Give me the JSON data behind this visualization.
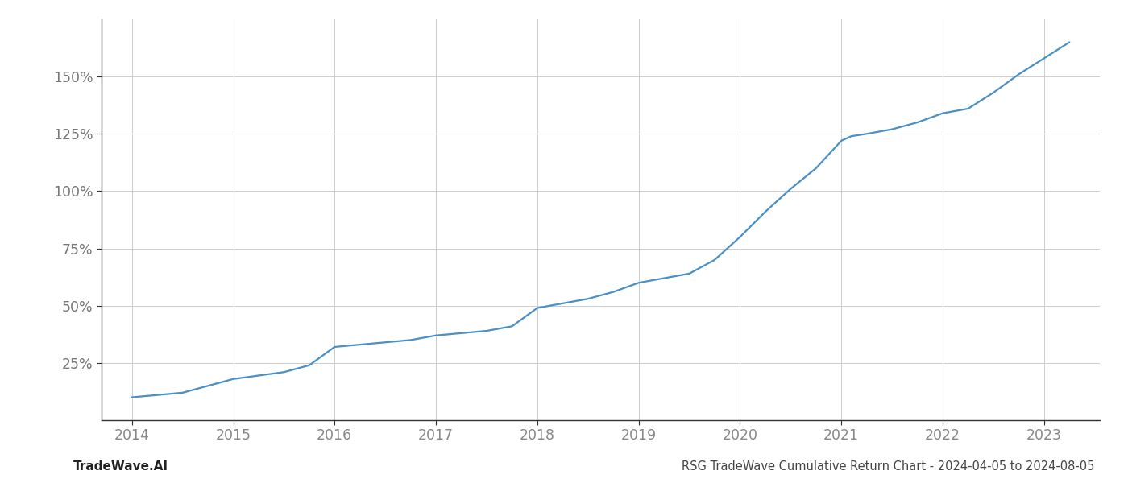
{
  "title": "RSG TradeWave Cumulative Return Chart - 2024-04-05 to 2024-08-05",
  "footer_left": "TradeWave.AI",
  "line_color": "#4a90c4",
  "line_width": 1.6,
  "background_color": "#ffffff",
  "grid_color": "#cccccc",
  "ylabel_color": "#777777",
  "xlabel_color": "#888888",
  "years": [
    2014.0,
    2014.25,
    2014.5,
    2014.75,
    2015.0,
    2015.25,
    2015.5,
    2015.75,
    2016.0,
    2016.25,
    2016.5,
    2016.75,
    2017.0,
    2017.25,
    2017.5,
    2017.75,
    2018.0,
    2018.25,
    2018.5,
    2018.75,
    2019.0,
    2019.25,
    2019.5,
    2019.75,
    2020.0,
    2020.25,
    2020.5,
    2020.75,
    2021.0,
    2021.1,
    2021.25,
    2021.5,
    2021.75,
    2022.0,
    2022.25,
    2022.5,
    2022.75,
    2023.0,
    2023.25
  ],
  "values": [
    10,
    11,
    12,
    15,
    18,
    19.5,
    21,
    24,
    32,
    33,
    34,
    35,
    37,
    38,
    39,
    41,
    49,
    51,
    53,
    56,
    60,
    62,
    64,
    70,
    80,
    91,
    101,
    110,
    122,
    124,
    125,
    127,
    130,
    134,
    136,
    143,
    151,
    158,
    165
  ],
  "xlim": [
    2013.7,
    2023.55
  ],
  "ylim": [
    0,
    175
  ],
  "yticks": [
    25,
    50,
    75,
    100,
    125,
    150
  ],
  "xticks": [
    2014,
    2015,
    2016,
    2017,
    2018,
    2019,
    2020,
    2021,
    2022,
    2023
  ],
  "title_fontsize": 10.5,
  "tick_fontsize": 12.5,
  "footer_fontsize": 11
}
